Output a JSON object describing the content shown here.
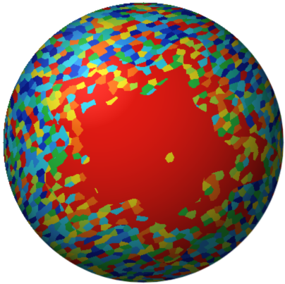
{
  "image": {
    "subject": "sphere",
    "background": "#ffffff",
    "palette": {
      "red": "#e01a12",
      "orange": "#f06a16",
      "yellow": "#e3d51d",
      "yellow_green": "#a2d63a",
      "green": "#27b93e",
      "teal": "#1fb6a6",
      "cyan": "#2fc6df",
      "light_blue": "#2a8fe6",
      "blue": "#1440c9",
      "dark_blue": "#0d1fa4"
    }
  }
}
